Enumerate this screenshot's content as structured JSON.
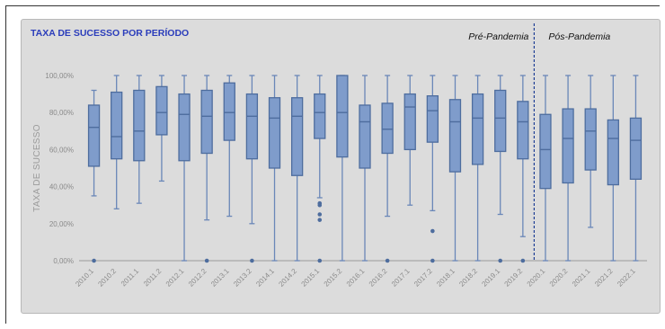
{
  "chart_data": {
    "type": "boxplot",
    "title": "TAXA DE SUCESSO POR PERÍODO",
    "ylabel": "TAXA DE SUCESSO",
    "xlabel": "",
    "ylim": [
      0,
      100
    ],
    "yticks": [
      "0,00%",
      "20,00%",
      "40,00%",
      "60,00%",
      "80,00%",
      "100,00%"
    ],
    "ytick_values": [
      0,
      20,
      40,
      60,
      80,
      100
    ],
    "grid": false,
    "divider_after": "2019.2",
    "annotations": [
      {
        "text": "Pré-Pandemia",
        "side": "left-of-divider"
      },
      {
        "text": "Pós-Pandemia",
        "side": "right-of-divider"
      }
    ],
    "categories": [
      "2010.1",
      "2010.2",
      "2011.1",
      "2011.2",
      "2012.1",
      "2012.2",
      "2013.1",
      "2013.2",
      "2014.1",
      "2014.2",
      "2015.1",
      "2015.2",
      "2016.1",
      "2016.2",
      "2017.1",
      "2017.2",
      "2018.1",
      "2018.2",
      "2019.1",
      "2019.2",
      "2020.1",
      "2020.2",
      "2021.1",
      "2021.2",
      "2022.1"
    ],
    "boxes": [
      {
        "min": 35,
        "q1": 51,
        "median": 72,
        "q3": 84,
        "max": 92,
        "outliers": [
          0
        ]
      },
      {
        "min": 28,
        "q1": 55,
        "median": 67,
        "q3": 91,
        "max": 100,
        "outliers": []
      },
      {
        "min": 31,
        "q1": 54,
        "median": 70,
        "q3": 92,
        "max": 100,
        "outliers": []
      },
      {
        "min": 43,
        "q1": 68,
        "median": 80,
        "q3": 94,
        "max": 100,
        "outliers": []
      },
      {
        "min": 0,
        "q1": 54,
        "median": 79,
        "q3": 90,
        "max": 100,
        "outliers": []
      },
      {
        "min": 22,
        "q1": 58,
        "median": 78,
        "q3": 92,
        "max": 100,
        "outliers": [
          0
        ]
      },
      {
        "min": 24,
        "q1": 65,
        "median": 80,
        "q3": 96,
        "max": 100,
        "outliers": []
      },
      {
        "min": 20,
        "q1": 55,
        "median": 78,
        "q3": 90,
        "max": 100,
        "outliers": [
          0
        ]
      },
      {
        "min": 0,
        "q1": 50,
        "median": 77,
        "q3": 88,
        "max": 100,
        "outliers": []
      },
      {
        "min": 0,
        "q1": 46,
        "median": 78,
        "q3": 88,
        "max": 100,
        "outliers": []
      },
      {
        "min": 34,
        "q1": 66,
        "median": 80,
        "q3": 90,
        "max": 100,
        "outliers": [
          31,
          30,
          25,
          22,
          0
        ]
      },
      {
        "min": 0,
        "q1": 56,
        "median": 80,
        "q3": 100,
        "max": 100,
        "outliers": []
      },
      {
        "min": 0,
        "q1": 50,
        "median": 75,
        "q3": 84,
        "max": 100,
        "outliers": []
      },
      {
        "min": 24,
        "q1": 58,
        "median": 71,
        "q3": 85,
        "max": 100,
        "outliers": [
          0
        ]
      },
      {
        "min": 30,
        "q1": 60,
        "median": 83,
        "q3": 90,
        "max": 100,
        "outliers": []
      },
      {
        "min": 27,
        "q1": 64,
        "median": 81,
        "q3": 89,
        "max": 100,
        "outliers": [
          16,
          0
        ]
      },
      {
        "min": 0,
        "q1": 48,
        "median": 75,
        "q3": 87,
        "max": 100,
        "outliers": []
      },
      {
        "min": 0,
        "q1": 52,
        "median": 77,
        "q3": 90,
        "max": 100,
        "outliers": []
      },
      {
        "min": 25,
        "q1": 59,
        "median": 77,
        "q3": 92,
        "max": 100,
        "outliers": [
          0
        ]
      },
      {
        "min": 13,
        "q1": 55,
        "median": 75,
        "q3": 86,
        "max": 100,
        "outliers": [
          0
        ]
      },
      {
        "min": 0,
        "q1": 39,
        "median": 60,
        "q3": 79,
        "max": 100,
        "outliers": []
      },
      {
        "min": 0,
        "q1": 42,
        "median": 66,
        "q3": 82,
        "max": 100,
        "outliers": []
      },
      {
        "min": 18,
        "q1": 49,
        "median": 70,
        "q3": 82,
        "max": 100,
        "outliers": []
      },
      {
        "min": 0,
        "q1": 41,
        "median": 66,
        "q3": 76,
        "max": 100,
        "outliers": []
      },
      {
        "min": 0,
        "q1": 44,
        "median": 65,
        "q3": 77,
        "max": 100,
        "outliers": []
      }
    ],
    "colors": {
      "box_fill": "#7f9ccb",
      "box_stroke": "#4e6d9e",
      "whisker": "#6a87b8",
      "axis": "#9a9a9a",
      "divider": "#1f3f95",
      "title": "#2b3dbb",
      "panel_bg": "#dcdcdc"
    }
  }
}
